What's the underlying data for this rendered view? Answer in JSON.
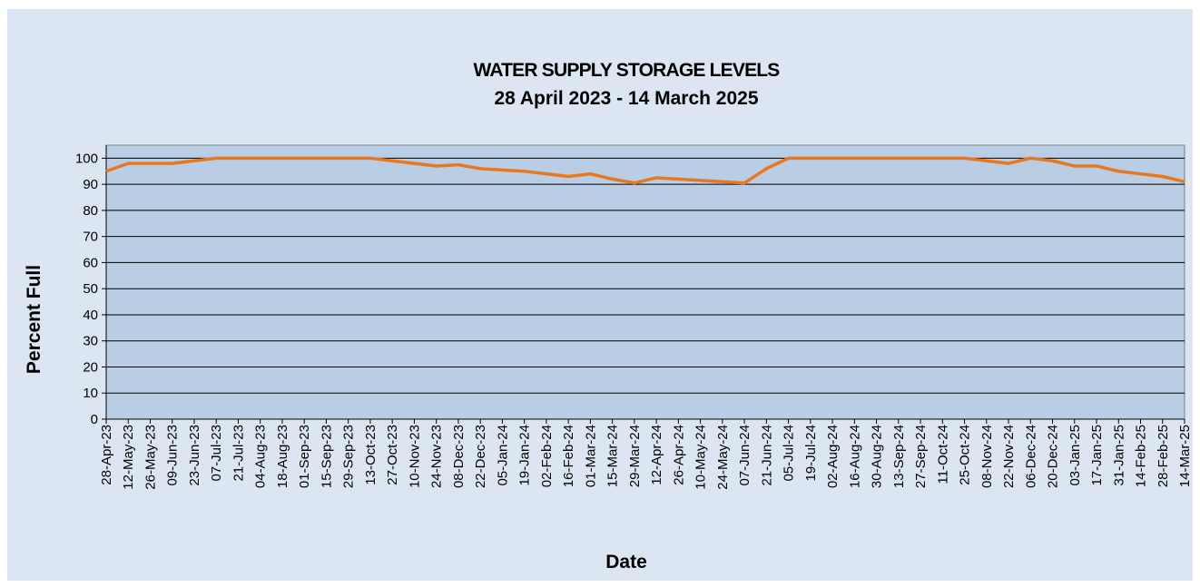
{
  "chart_data": {
    "type": "line",
    "title": "WATER SUPPLY STORAGE LEVELS",
    "subtitle": "28 April 2023 - 14 March 2025",
    "x_label": "Date",
    "y_label": "Percent Full",
    "categories": [
      "28-Apr-23",
      "12-May-23",
      "26-May-23",
      "09-Jun-23",
      "23-Jun-23",
      "07-Jul-23",
      "21-Jul-23",
      "04-Aug-23",
      "18-Aug-23",
      "01-Sep-23",
      "15-Sep-23",
      "29-Sep-23",
      "13-Oct-23",
      "27-Oct-23",
      "10-Nov-23",
      "24-Nov-23",
      "08-Dec-23",
      "22-Dec-23",
      "05-Jan-24",
      "19-Jan-24",
      "02-Feb-24",
      "16-Feb-24",
      "01-Mar-24",
      "15-Mar-24",
      "29-Mar-24",
      "12-Apr-24",
      "26-Apr-24",
      "10-May-24",
      "24-May-24",
      "07-Jun-24",
      "21-Jun-24",
      "05-Jul-24",
      "19-Jul-24",
      "02-Aug-24",
      "16-Aug-24",
      "30-Aug-24",
      "13-Sep-24",
      "27-Sep-24",
      "11-Oct-24",
      "25-Oct-24",
      "08-Nov-24",
      "22-Nov-24",
      "06-Dec-24",
      "20-Dec-24",
      "03-Jan-25",
      "17-Jan-25",
      "31-Jan-25",
      "14-Feb-25",
      "28-Feb-25",
      "14-Mar-25"
    ],
    "series": [
      {
        "name": "Percent Full",
        "color": "#e8781e",
        "values": [
          95,
          98,
          98,
          98,
          99,
          100,
          100,
          100,
          100,
          100,
          100,
          100,
          100,
          99,
          98,
          97,
          97.5,
          96,
          95.5,
          95,
          94,
          93,
          94,
          92,
          90.5,
          92.5,
          92,
          91.5,
          91,
          90.5,
          96,
          100,
          100,
          100,
          100,
          100,
          100,
          100,
          100,
          100,
          99,
          98,
          100,
          99,
          97,
          97,
          95,
          94,
          93,
          91
        ]
      }
    ],
    "ylim": [
      0,
      105
    ],
    "yticks": [
      0,
      10,
      20,
      30,
      40,
      50,
      60,
      70,
      80,
      90,
      100
    ],
    "grid": true
  }
}
